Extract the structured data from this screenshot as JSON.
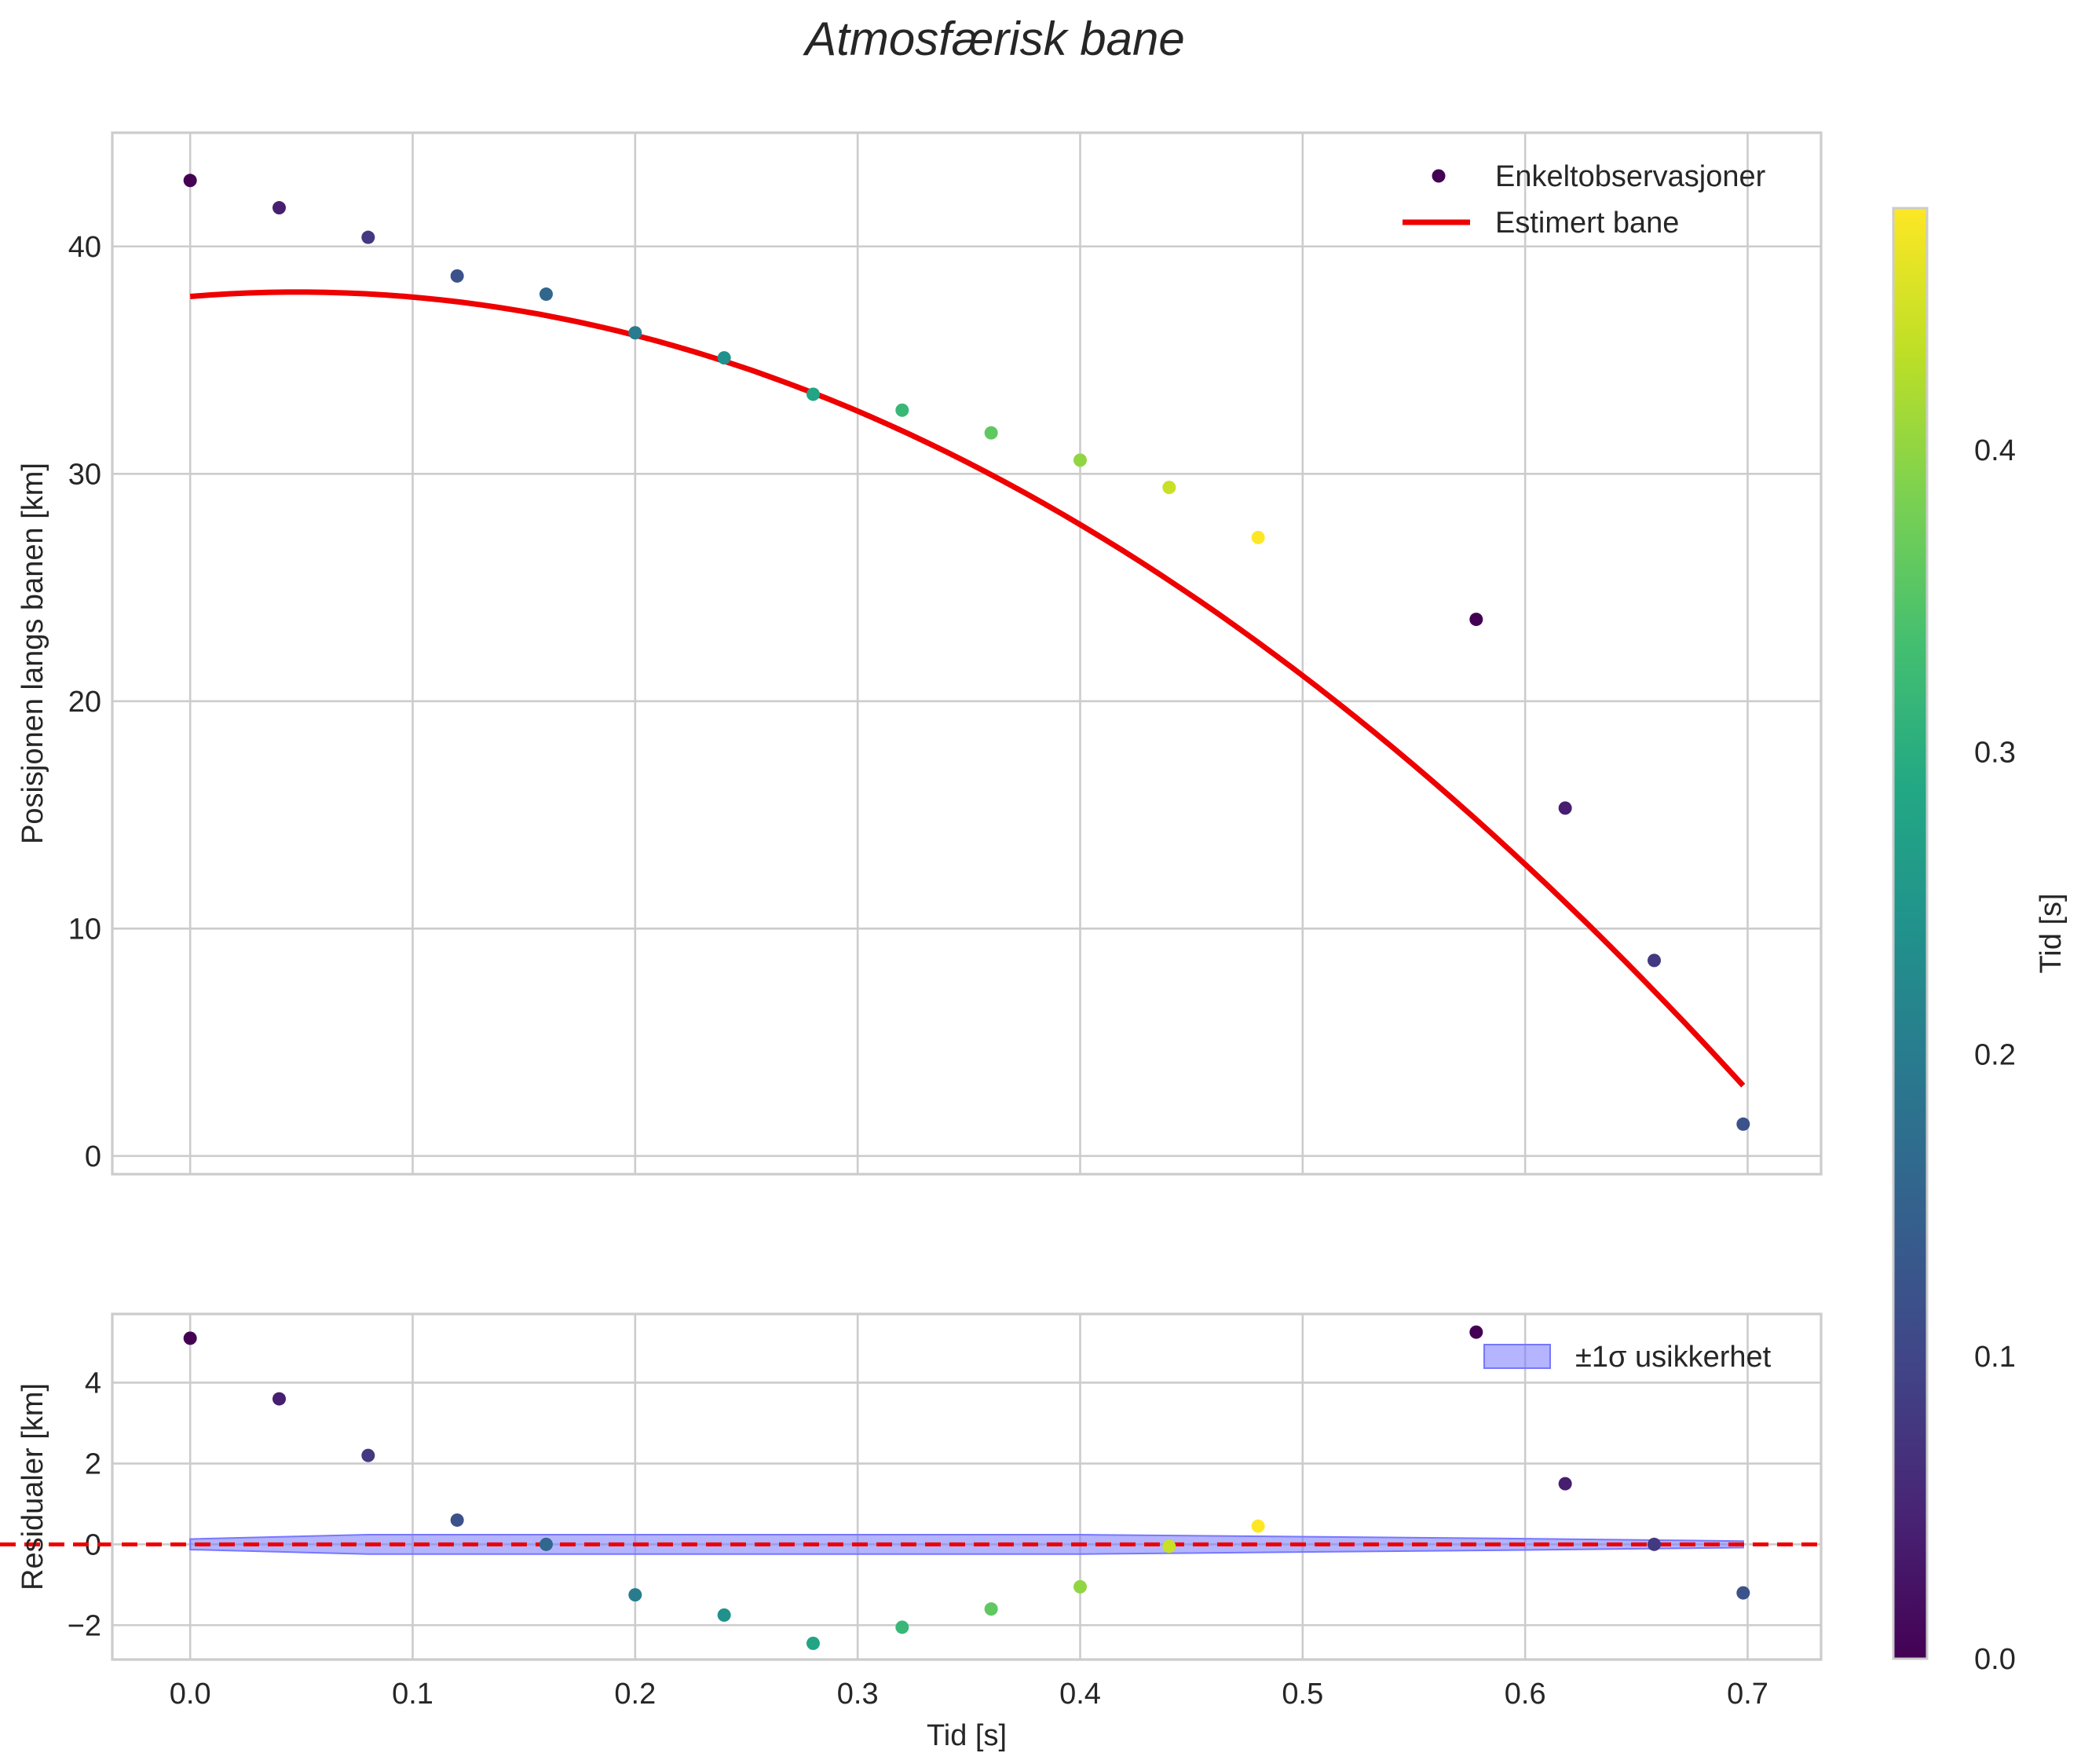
{
  "chart_data": [
    {
      "type": "scatter",
      "panel": "main",
      "title": "Atmosfærisk bane",
      "xlabel": "",
      "ylabel": "Posisjonen langs banen [km]",
      "xlim": [
        -0.035,
        0.733
      ],
      "ylim": [
        -0.8,
        45
      ],
      "xticks": [
        0.0,
        0.1,
        0.2,
        0.3,
        0.4,
        0.5,
        0.6,
        0.7
      ],
      "yticks": [
        0,
        10,
        20,
        30,
        40
      ],
      "ytick_labels": [
        "0",
        "10",
        "20",
        "30",
        "40"
      ],
      "grid": true,
      "legend_position": "top-right",
      "legend": [
        "Enkeltobservasjoner",
        "Estimert bane"
      ],
      "observations": {
        "name": "Enkeltobservasjoner",
        "x": [
          0.0,
          0.04,
          0.08,
          0.12,
          0.16,
          0.2,
          0.24,
          0.28,
          0.32,
          0.36,
          0.4,
          0.44,
          0.48,
          0.578,
          0.618,
          0.658,
          0.698
        ],
        "y": [
          42.9,
          41.7,
          40.4,
          38.7,
          37.9,
          36.2,
          35.1,
          33.5,
          32.8,
          31.8,
          30.6,
          29.4,
          27.2,
          23.6,
          15.3,
          8.6,
          1.4
        ],
        "color_value": [
          0.0,
          0.04,
          0.08,
          0.12,
          0.16,
          0.2,
          0.24,
          0.28,
          0.32,
          0.36,
          0.4,
          0.44,
          0.48,
          0.0,
          0.04,
          0.08,
          0.12
        ]
      },
      "fit": {
        "name": "Estimert bane",
        "color": "#ee0000",
        "x_range": [
          0.0,
          0.698
        ],
        "coefficients_quadratic": [
          37.8,
          8.0,
          -82.7
        ]
      }
    },
    {
      "type": "scatter",
      "panel": "residuals",
      "xlabel": "Tid [s]",
      "ylabel": "Residualer [km]",
      "xlim": [
        -0.035,
        0.733
      ],
      "ylim": [
        -2.85,
        5.7
      ],
      "xticks": [
        0.0,
        0.1,
        0.2,
        0.3,
        0.4,
        0.5,
        0.6,
        0.7
      ],
      "xtick_labels": [
        "0.0",
        "0.1",
        "0.2",
        "0.3",
        "0.4",
        "0.5",
        "0.6",
        "0.7"
      ],
      "yticks": [
        -2,
        0,
        2,
        4
      ],
      "ytick_labels": [
        "−2",
        "0",
        "2",
        "4"
      ],
      "grid": true,
      "legend_position": "top-right",
      "legend": [
        "±1σ usikkerhet"
      ],
      "residuals": {
        "x": [
          0.0,
          0.04,
          0.08,
          0.12,
          0.16,
          0.2,
          0.24,
          0.28,
          0.32,
          0.36,
          0.4,
          0.44,
          0.48,
          0.578,
          0.618,
          0.658,
          0.698
        ],
        "y": [
          5.1,
          3.6,
          2.2,
          0.6,
          0.0,
          -1.25,
          -1.75,
          -2.45,
          -2.05,
          -1.6,
          -1.05,
          -0.05,
          0.45,
          5.25,
          1.5,
          0.0,
          -1.2
        ],
        "color_value": [
          0.0,
          0.04,
          0.08,
          0.12,
          0.16,
          0.2,
          0.24,
          0.28,
          0.32,
          0.36,
          0.4,
          0.44,
          0.48,
          0.0,
          0.04,
          0.08,
          0.12
        ]
      },
      "uncertainty_band": {
        "name": "±1σ usikkerhet",
        "color": "#7777ff",
        "x": [
          0.0,
          0.08,
          0.3,
          0.4,
          0.6,
          0.698
        ],
        "sigma": [
          0.13,
          0.24,
          0.24,
          0.24,
          0.14,
          0.08
        ]
      },
      "zero_line": {
        "y": 0,
        "color": "#ee0000",
        "style": "dashed"
      }
    }
  ],
  "colorbar": {
    "label": "Tid [s]",
    "range": [
      0.0,
      0.48
    ],
    "ticks": [
      0.0,
      0.1,
      0.2,
      0.3,
      0.4
    ],
    "tick_labels": [
      "0.0",
      "0.1",
      "0.2",
      "0.3",
      "0.4"
    ],
    "colormap": "viridis"
  }
}
